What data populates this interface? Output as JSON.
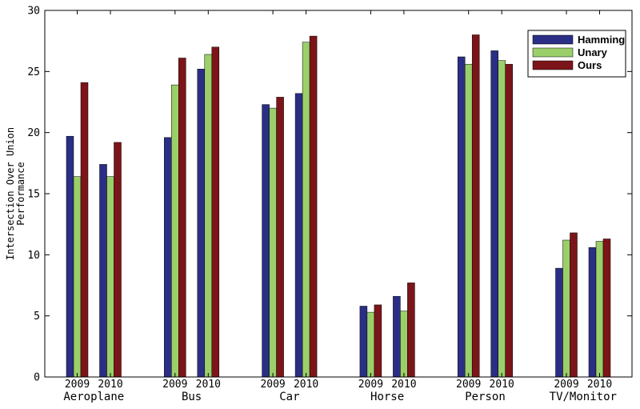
{
  "chart_data": {
    "type": "bar",
    "ylabel_lines": [
      "Intersection Over Union",
      "Performance"
    ],
    "ylim": [
      0,
      30
    ],
    "yticks": [
      0,
      5,
      10,
      15,
      20,
      25,
      30
    ],
    "grid": false,
    "legend_position": "top-right",
    "groups": [
      {
        "name": "Aeroplane",
        "years": [
          "2009",
          "2010"
        ]
      },
      {
        "name": "Bus",
        "years": [
          "2009",
          "2010"
        ]
      },
      {
        "name": "Car",
        "years": [
          "2009",
          "2010"
        ]
      },
      {
        "name": "Horse",
        "years": [
          "2009",
          "2010"
        ]
      },
      {
        "name": "Person",
        "years": [
          "2009",
          "2010"
        ]
      },
      {
        "name": "TV/Monitor",
        "years": [
          "2009",
          "2010"
        ]
      }
    ],
    "series": [
      {
        "name": "Hamming",
        "color": "#2b2e85",
        "values": [
          19.7,
          17.4,
          19.6,
          25.2,
          22.3,
          23.2,
          5.8,
          6.6,
          26.2,
          26.7,
          8.9,
          10.6
        ]
      },
      {
        "name": "Unary",
        "color": "#9bcf6a",
        "values": [
          16.4,
          16.4,
          23.9,
          26.4,
          22.0,
          27.4,
          5.3,
          5.4,
          25.6,
          25.9,
          11.2,
          11.1
        ]
      },
      {
        "name": "Ours",
        "color": "#7c1519",
        "values": [
          24.1,
          19.2,
          26.1,
          27.0,
          22.9,
          27.9,
          5.9,
          7.7,
          28.0,
          25.6,
          11.8,
          11.3
        ]
      }
    ]
  }
}
